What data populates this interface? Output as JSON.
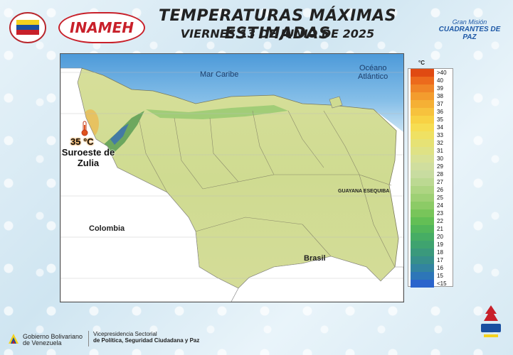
{
  "header": {
    "title": "TEMPERATURAS MÁXIMAS ESTIMADAS",
    "subtitle": "VIERNES 13 DE JUNIO DE 2025"
  },
  "logos": {
    "inameh": "INAMEH",
    "gran_mision_line1": "Gran Misión",
    "gran_mision_line2": "CUADRANTES DE PAZ"
  },
  "map": {
    "sea_labels": {
      "caribe": "Mar Caribe",
      "oceano_1": "Océano",
      "oceano_2": "Atlántico"
    },
    "country_labels": {
      "colombia": "Colombia",
      "brasil": "Brasil",
      "guayana": "GUAYANA ESEQUIBA"
    },
    "highlight": {
      "value": "35 °C",
      "place_line1": "Suroeste de",
      "place_line2": "Zulia",
      "color": "#e0521c"
    }
  },
  "legend": {
    "unit": "°C",
    "entries": [
      {
        "label": ">40",
        "color": "#e04a12"
      },
      {
        "label": "40",
        "color": "#ec6a1c"
      },
      {
        "label": "39",
        "color": "#f08526"
      },
      {
        "label": "38",
        "color": "#f39c2e"
      },
      {
        "label": "37",
        "color": "#f5b035"
      },
      {
        "label": "36",
        "color": "#f7c23d"
      },
      {
        "label": "35",
        "color": "#f8d244"
      },
      {
        "label": "34",
        "color": "#f6dd52"
      },
      {
        "label": "33",
        "color": "#efe163"
      },
      {
        "label": "32",
        "color": "#e6e275"
      },
      {
        "label": "31",
        "color": "#dfe285"
      },
      {
        "label": "30",
        "color": "#d8e195"
      },
      {
        "label": "29",
        "color": "#d0de9e"
      },
      {
        "label": "28",
        "color": "#c8dca0"
      },
      {
        "label": "27",
        "color": "#bcd992"
      },
      {
        "label": "26",
        "color": "#aed582"
      },
      {
        "label": "25",
        "color": "#9ed074"
      },
      {
        "label": "24",
        "color": "#8ccb66"
      },
      {
        "label": "23",
        "color": "#78c55a"
      },
      {
        "label": "22",
        "color": "#63bf55"
      },
      {
        "label": "21",
        "color": "#52b65a"
      },
      {
        "label": "20",
        "color": "#46ad64"
      },
      {
        "label": "19",
        "color": "#3fa36f"
      },
      {
        "label": "18",
        "color": "#3a997c"
      },
      {
        "label": "17",
        "color": "#368f8b"
      },
      {
        "label": "16",
        "color": "#3284a0"
      },
      {
        "label": "15",
        "color": "#2d76b8"
      },
      {
        "label": "<15",
        "color": "#2a64cc"
      }
    ]
  },
  "footer": {
    "gov_line1": "Gobierno Bolivariano",
    "gov_line2": "de Venezuela",
    "vp_line1": "Vicepresidencia Sectorial",
    "vp_line2": "de Política, Seguridad Ciudadana y Paz"
  }
}
